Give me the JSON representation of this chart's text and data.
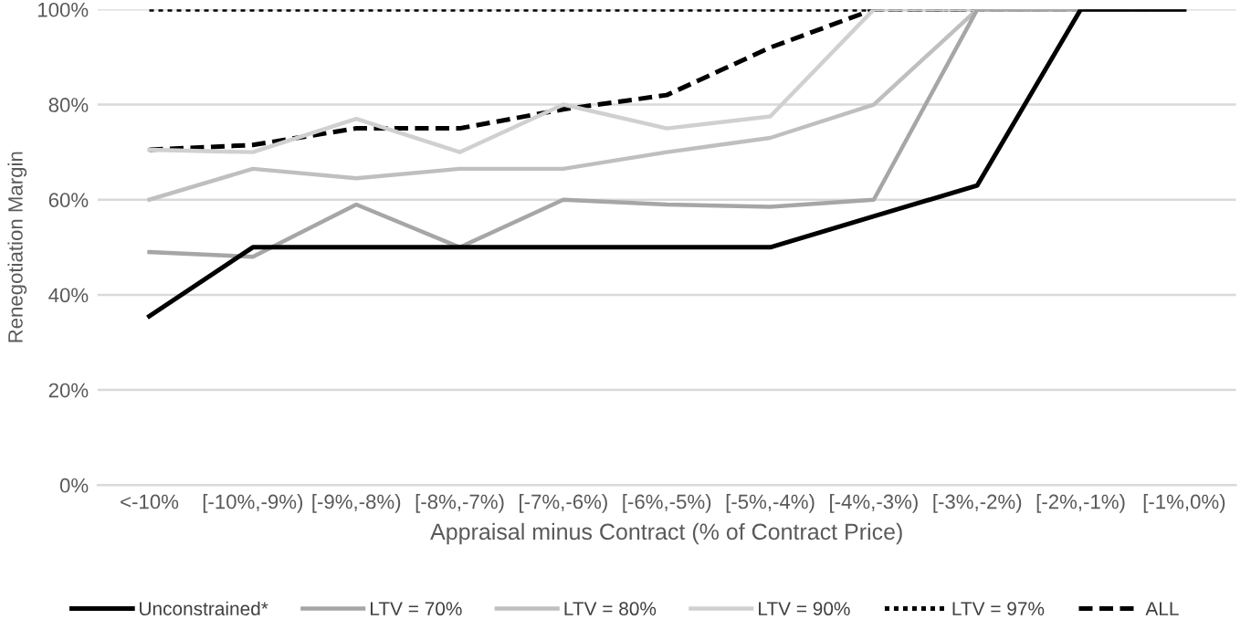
{
  "chart_data": {
    "type": "line",
    "ylabel": "Renegotiation Margin",
    "xlabel": "Appraisal minus Contract (% of Contract Price)",
    "categories": [
      "<-10%",
      "[-10%,-9%)",
      "[-9%,-8%)",
      "[-8%,-7%)",
      "[-7%,-6%)",
      "[-6%,-5%)",
      "[-5%,-4%)",
      "[-4%,-3%)",
      "[-3%,-2%)",
      "[-2%,-1%)",
      "[-1%,0%)"
    ],
    "series": [
      {
        "name": "Unconstrained*",
        "color": "#000000",
        "line_style": "solid",
        "values": [
          35.5,
          50,
          50,
          50,
          50,
          50,
          50,
          56.5,
          63,
          100,
          100
        ]
      },
      {
        "name": "LTV = 70%",
        "color": "#a6a6a6",
        "line_style": "solid",
        "values": [
          49,
          48,
          59,
          50,
          60,
          59,
          58.5,
          60,
          100,
          100,
          100
        ]
      },
      {
        "name": "LTV = 80%",
        "color": "#bfbfbf",
        "line_style": "solid",
        "values": [
          60,
          66.5,
          64.5,
          66.5,
          66.5,
          70,
          73,
          80,
          100,
          100,
          100
        ]
      },
      {
        "name": "LTV = 90%",
        "color": "#d0d0d0",
        "line_style": "solid",
        "values": [
          70.5,
          70,
          77,
          70,
          80,
          75,
          77.5,
          100,
          100,
          100,
          100
        ]
      },
      {
        "name": "LTV = 97%",
        "color": "#000000",
        "line_style": "dotted",
        "values": [
          100,
          100,
          100,
          100,
          100,
          100,
          100,
          100,
          100,
          100,
          100
        ]
      },
      {
        "name": "ALL",
        "color": "#000000",
        "line_style": "dashed",
        "values": [
          70.5,
          71.5,
          75,
          75,
          79,
          82,
          92,
          100,
          100,
          100,
          100
        ]
      }
    ],
    "ylim": [
      0,
      100
    ],
    "yticks": [
      {
        "value": 0,
        "label": "0%"
      },
      {
        "value": 20,
        "label": "20%"
      },
      {
        "value": 40,
        "label": "40%"
      },
      {
        "value": 60,
        "label": "60%"
      },
      {
        "value": 80,
        "label": "80%"
      },
      {
        "value": 100,
        "label": "100%"
      }
    ],
    "grid": "y",
    "legend": "bottom",
    "marker": "none"
  }
}
